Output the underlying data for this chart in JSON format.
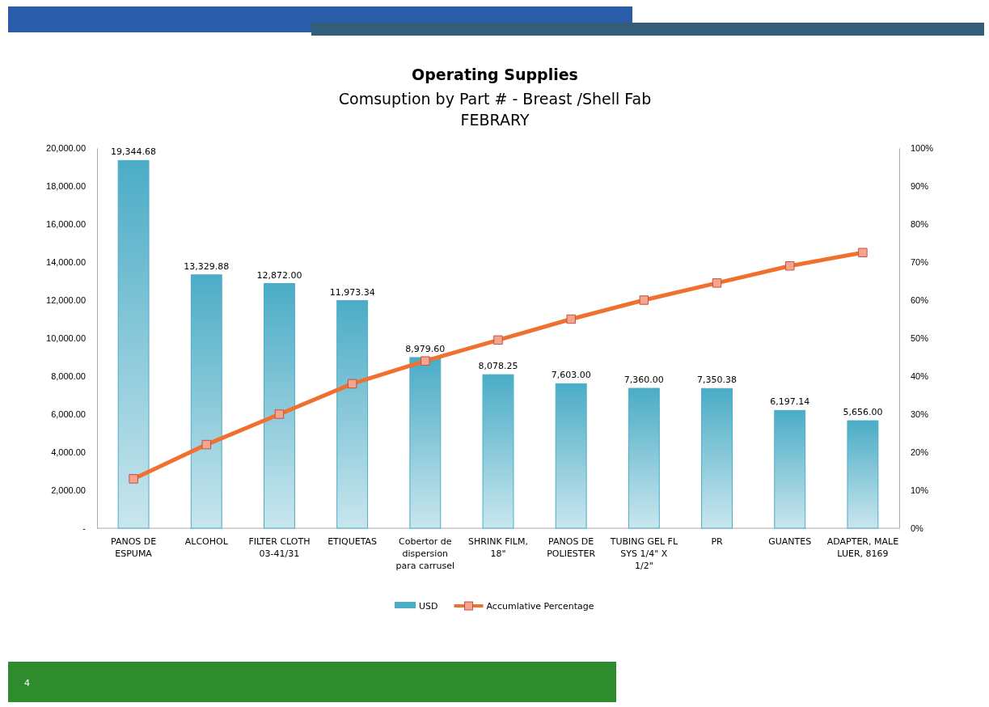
{
  "chart_data": {
    "type": "bar",
    "title": "Operating Supplies",
    "subtitle": "Comsuption by Part # - Breast /Shell Fab\nFEBRARY",
    "categories": [
      "PANOS DE ESPUMA",
      "ALCOHOL",
      "FILTER CLOTH 03-41/31",
      "ETIQUETAS",
      "Cobertor de dispersion para carrusel",
      "SHRINK FILM, 18\"",
      "PANOS DE POLIESTER",
      "TUBING GEL FL SYS 1/4\" X 1/2\"",
      "PR",
      "GUANTES",
      "ADAPTER, MALE LUER, 8169"
    ],
    "series": [
      {
        "name": "USD",
        "color": "#4bacc6",
        "values": [
          19344.68,
          13329.88,
          12872.0,
          11973.34,
          8979.6,
          8078.25,
          7603.0,
          7360.0,
          7350.38,
          6197.14,
          5656.0
        ],
        "value_labels": [
          "19,344.68",
          "13,329.88",
          "12,872.00",
          "11,973.34",
          "8,979.60",
          "8,078.25",
          "7,603.00",
          "7,360.00",
          "7,350.38",
          "6,197.14",
          "5,656.00"
        ]
      },
      {
        "name": "Accumlative Percentage",
        "type": "line",
        "axis": "y2",
        "color": "#f07030",
        "marker": "square",
        "values": [
          13,
          22,
          30,
          38,
          44,
          49.5,
          55,
          60,
          64.5,
          69,
          72.5
        ]
      }
    ],
    "ylim": [
      0,
      20000
    ],
    "yticks": [
      {
        "value": 0,
        "label": "-"
      },
      {
        "value": 2000,
        "label": "2,000.00"
      },
      {
        "value": 4000,
        "label": "4,000.00"
      },
      {
        "value": 6000,
        "label": "6,000.00"
      },
      {
        "value": 8000,
        "label": "8,000.00"
      },
      {
        "value": 10000,
        "label": "10,000.00"
      },
      {
        "value": 12000,
        "label": "12,000.00"
      },
      {
        "value": 14000,
        "label": "14,000.00"
      },
      {
        "value": 16000,
        "label": "16,000.00"
      },
      {
        "value": 18000,
        "label": "18,000.00"
      },
      {
        "value": 20000,
        "label": "20,000.00"
      }
    ],
    "y2lim": [
      0,
      100
    ],
    "y2ticks": [
      {
        "value": 0,
        "label": "0%"
      },
      {
        "value": 10,
        "label": "10%"
      },
      {
        "value": 20,
        "label": "20%"
      },
      {
        "value": 30,
        "label": "30%"
      },
      {
        "value": 40,
        "label": "40%"
      },
      {
        "value": 50,
        "label": "50%"
      },
      {
        "value": 60,
        "label": "60%"
      },
      {
        "value": 70,
        "label": "70%"
      },
      {
        "value": 80,
        "label": "80%"
      },
      {
        "value": 90,
        "label": "90%"
      },
      {
        "value": 100,
        "label": "100%"
      }
    ],
    "legend": "bottom",
    "annotations": [
      "4"
    ]
  }
}
